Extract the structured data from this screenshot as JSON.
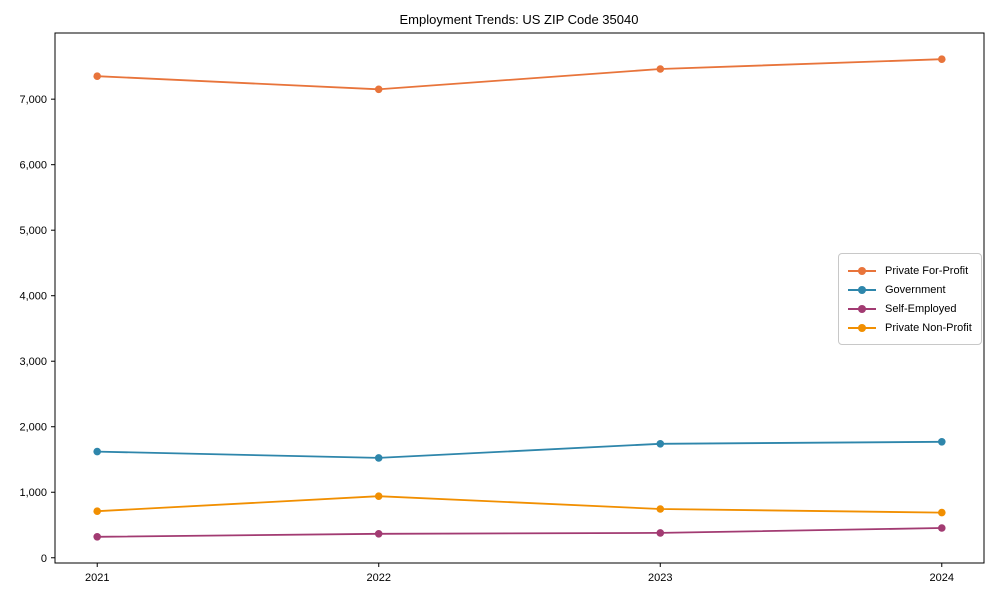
{
  "figure": {
    "background": "#ffffff",
    "spine_color": "#000000",
    "tick_color": "#000000"
  },
  "chart_data": {
    "type": "line",
    "title": "Employment Trends: US ZIP Code 35040",
    "xlabel": "",
    "ylabel": "",
    "x": [
      2021,
      2022,
      2023,
      2024
    ],
    "x_tick_labels": [
      "2021",
      "2022",
      "2023",
      "2024"
    ],
    "y_tick_values": [
      0,
      1000,
      2000,
      3000,
      4000,
      5000,
      6000,
      7000
    ],
    "y_tick_labels": [
      "0",
      "1,000",
      "2,000",
      "3,000",
      "4,000",
      "5,000",
      "6,000",
      "7,000"
    ],
    "xlim": [
      2020.85,
      2024.15
    ],
    "ylim": [
      -80,
      8010
    ],
    "grid": false,
    "legend_position": "center-right",
    "marker": "circle",
    "series": [
      {
        "name": "Private For-Profit",
        "color": "#e8743b",
        "values": [
          7350,
          7150,
          7460,
          7610
        ]
      },
      {
        "name": "Government",
        "color": "#2e86ab",
        "values": [
          1620,
          1525,
          1740,
          1770
        ]
      },
      {
        "name": "Self-Employed",
        "color": "#a23b72",
        "values": [
          320,
          365,
          380,
          455
        ]
      },
      {
        "name": "Private Non-Profit",
        "color": "#f18f01",
        "values": [
          710,
          940,
          745,
          690
        ]
      }
    ]
  }
}
